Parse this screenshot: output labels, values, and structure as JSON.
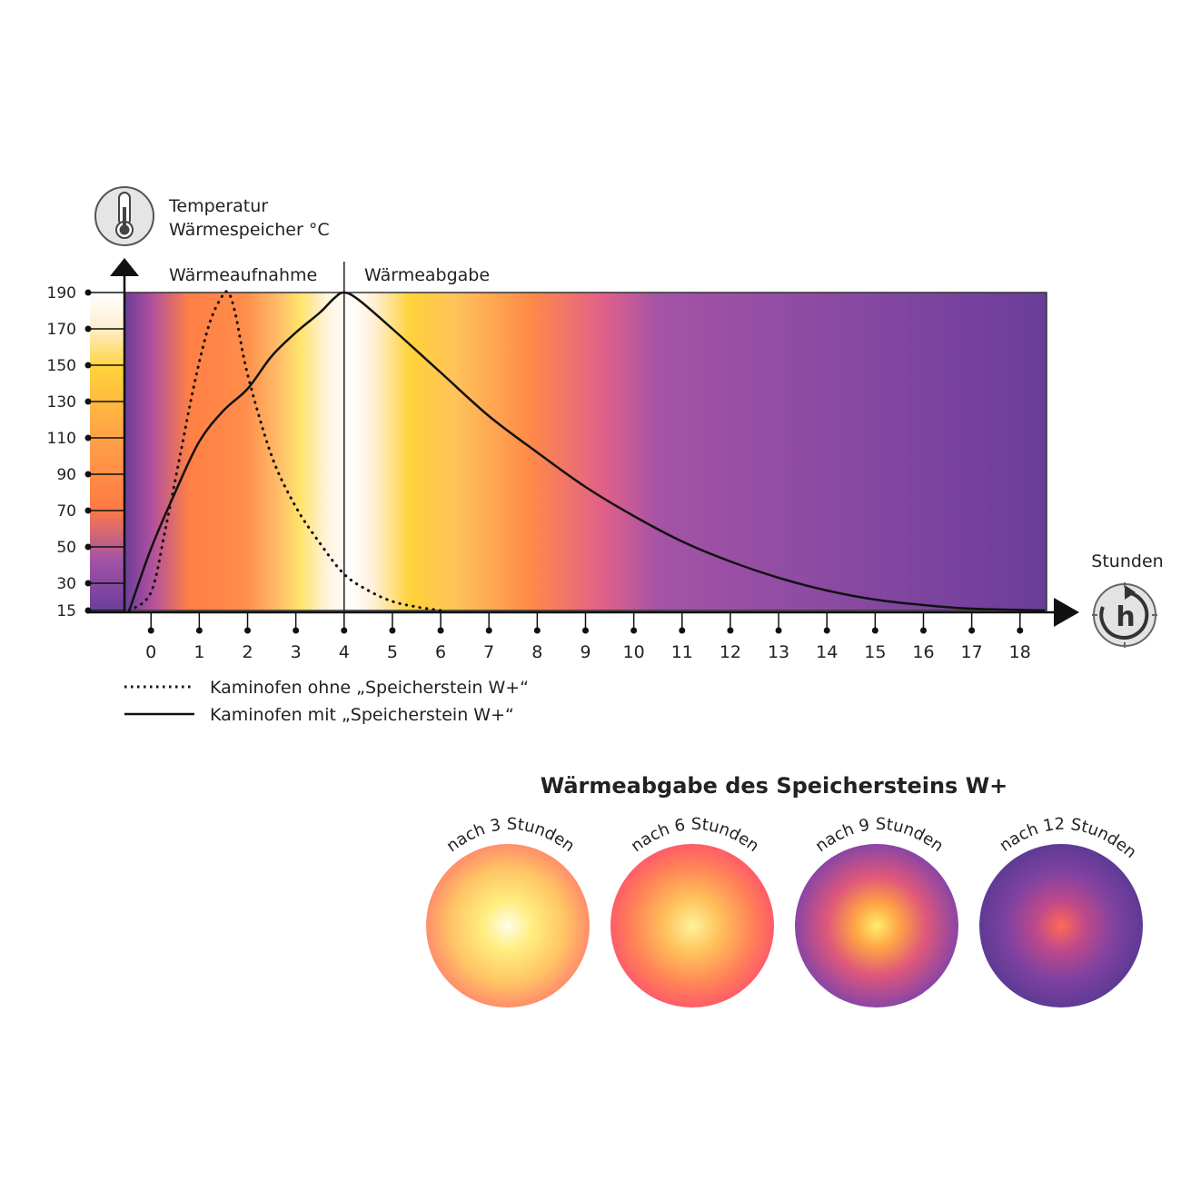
{
  "chart_data": {
    "type": "line",
    "y_axis_title": [
      "Temperatur",
      "Wärmespeicher °C"
    ],
    "x_axis_title": "Stunden",
    "phase_labels": {
      "heating": "Wärmeaufnahme",
      "release": "Wärmeabgabe"
    },
    "phase_divider_x": 4,
    "y_ticks": [
      15,
      30,
      50,
      70,
      90,
      110,
      130,
      150,
      170,
      190
    ],
    "x_ticks": [
      0,
      1,
      2,
      3,
      4,
      5,
      6,
      7,
      8,
      9,
      10,
      11,
      12,
      13,
      14,
      15,
      16,
      17,
      18
    ],
    "xlim": [
      -0.55,
      18.55
    ],
    "ylim": [
      15,
      190
    ],
    "grid": false,
    "legend_position": "bottom-left",
    "series": [
      {
        "name": "Kaminofen ohne „Speicherstein W+“",
        "style": "dotted",
        "points": [
          [
            -0.45,
            15
          ],
          [
            0,
            25
          ],
          [
            0.3,
            60
          ],
          [
            0.6,
            100
          ],
          [
            0.9,
            140
          ],
          [
            1.2,
            172
          ],
          [
            1.45,
            187
          ],
          [
            1.6,
            190
          ],
          [
            1.75,
            178
          ],
          [
            2.0,
            145
          ],
          [
            2.5,
            100
          ],
          [
            3.0,
            72
          ],
          [
            3.5,
            52
          ],
          [
            4.0,
            35
          ],
          [
            4.5,
            26
          ],
          [
            5.0,
            20
          ],
          [
            5.5,
            17
          ],
          [
            6.0,
            15
          ]
        ]
      },
      {
        "name": "Kaminofen mit „Speicherstein W+“",
        "style": "solid",
        "points": [
          [
            -0.45,
            15
          ],
          [
            0,
            49
          ],
          [
            0.5,
            80
          ],
          [
            1.0,
            108
          ],
          [
            1.5,
            125
          ],
          [
            2.0,
            137
          ],
          [
            2.5,
            155
          ],
          [
            3.0,
            168
          ],
          [
            3.5,
            179
          ],
          [
            3.8,
            187
          ],
          [
            4.0,
            190
          ],
          [
            4.3,
            186
          ],
          [
            5.0,
            170
          ],
          [
            6.0,
            146
          ],
          [
            7.0,
            122
          ],
          [
            8.0,
            102
          ],
          [
            9.0,
            83
          ],
          [
            10.0,
            67
          ],
          [
            11.0,
            53
          ],
          [
            12.0,
            42
          ],
          [
            13.0,
            33
          ],
          [
            14.0,
            26
          ],
          [
            15.0,
            21
          ],
          [
            16.0,
            18
          ],
          [
            17.0,
            16
          ],
          [
            18.5,
            15
          ]
        ]
      }
    ]
  },
  "circles_section": {
    "heading": "Wärmeabgabe des Speichersteins W+",
    "items": [
      {
        "caption": "nach 3 Stunden"
      },
      {
        "caption": "nach 6 Stunden"
      },
      {
        "caption": "nach 9 Stunden"
      },
      {
        "caption": "nach 12 Stunden"
      }
    ]
  },
  "icons": {
    "y_axis": "thermometer-icon",
    "x_axis": "clock-hours-icon",
    "clock_letter": "h"
  },
  "colors": {
    "purple": "#6a3d9a",
    "violet": "#9a4fa6",
    "orange": "#ff7f45",
    "yellow": "#ffd23a",
    "cream": "#fff6ea",
    "line": "#111111"
  }
}
